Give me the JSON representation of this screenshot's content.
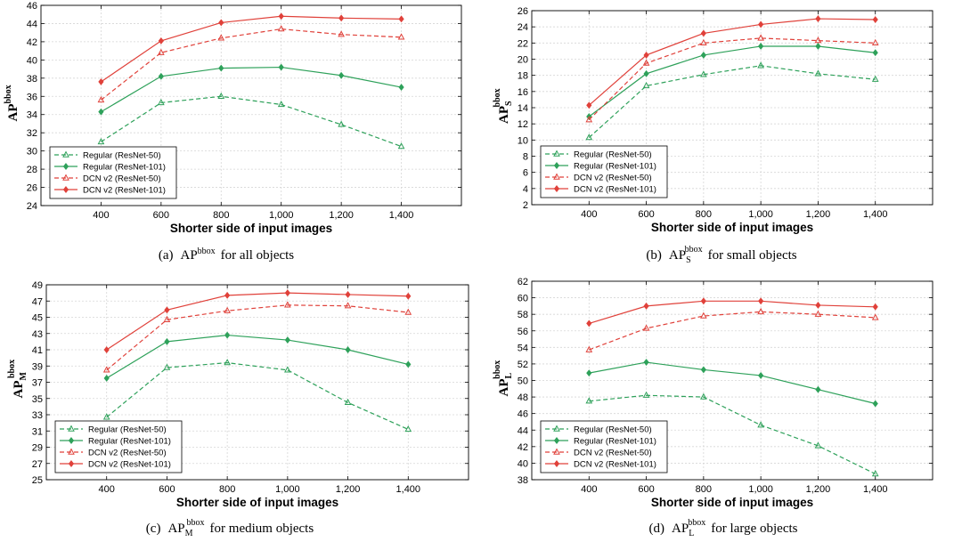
{
  "colors": {
    "regular": "#2ea15a",
    "dcn": "#e0413a"
  },
  "chart_data": [
    {
      "type": "line",
      "panel": "a",
      "caption": {
        "prefix": "(a)",
        "base": "AP",
        "sup": "bbox",
        "sub": "",
        "suffix": "for all objects"
      },
      "ylabel": {
        "base": "AP",
        "sup": "bbox",
        "sub": ""
      },
      "xlabel": "Shorter side of input images",
      "x": [
        400,
        600,
        800,
        1000,
        1200,
        1400
      ],
      "x_tick_labels": [
        "400",
        "600",
        "800",
        "1,000",
        "1,200",
        "1,400"
      ],
      "xlim": [
        200,
        1600
      ],
      "ylim": [
        24,
        46
      ],
      "y_ticks": [
        24,
        26,
        28,
        30,
        32,
        34,
        36,
        38,
        40,
        42,
        44,
        46
      ],
      "grid": true,
      "legend_position": "bottom-left",
      "series": [
        {
          "name": "Regular (ResNet-50)",
          "family": "regular",
          "dashed": true,
          "marker": "triangle",
          "values": [
            31.0,
            35.3,
            36.0,
            35.1,
            32.9,
            30.5
          ]
        },
        {
          "name": "Regular (ResNet-101)",
          "family": "regular",
          "dashed": false,
          "marker": "diamond",
          "values": [
            34.3,
            38.2,
            39.1,
            39.2,
            38.3,
            37.0
          ]
        },
        {
          "name": "DCN v2 (ResNet-50)",
          "family": "dcn",
          "dashed": true,
          "marker": "triangle",
          "values": [
            35.6,
            40.8,
            42.4,
            43.4,
            42.8,
            42.5
          ]
        },
        {
          "name": "DCN v2 (ResNet-101)",
          "family": "dcn",
          "dashed": false,
          "marker": "diamond",
          "values": [
            37.6,
            42.1,
            44.1,
            44.8,
            44.6,
            44.5
          ]
        }
      ]
    },
    {
      "type": "line",
      "panel": "b",
      "caption": {
        "prefix": "(b)",
        "base": "AP",
        "sup": "bbox",
        "sub": "S",
        "suffix": "for small objects"
      },
      "ylabel": {
        "base": "AP",
        "sup": "bbox",
        "sub": "S"
      },
      "xlabel": "Shorter side of input images",
      "x": [
        400,
        600,
        800,
        1000,
        1200,
        1400
      ],
      "x_tick_labels": [
        "400",
        "600",
        "800",
        "1,000",
        "1,200",
        "1,400"
      ],
      "xlim": [
        200,
        1600
      ],
      "ylim": [
        2,
        26
      ],
      "y_ticks": [
        2,
        4,
        6,
        8,
        10,
        12,
        14,
        16,
        18,
        20,
        22,
        24,
        26
      ],
      "grid": true,
      "legend_position": "bottom-left",
      "series": [
        {
          "name": "Regular (ResNet-50)",
          "family": "regular",
          "dashed": true,
          "marker": "triangle",
          "values": [
            10.3,
            16.7,
            18.1,
            19.2,
            18.2,
            17.5
          ]
        },
        {
          "name": "Regular (ResNet-101)",
          "family": "regular",
          "dashed": false,
          "marker": "diamond",
          "values": [
            12.9,
            18.2,
            20.5,
            21.6,
            21.6,
            20.8
          ]
        },
        {
          "name": "DCN v2 (ResNet-50)",
          "family": "dcn",
          "dashed": true,
          "marker": "triangle",
          "values": [
            12.5,
            19.5,
            22.0,
            22.6,
            22.3,
            22.0
          ]
        },
        {
          "name": "DCN v2 (ResNet-101)",
          "family": "dcn",
          "dashed": false,
          "marker": "diamond",
          "values": [
            14.3,
            20.5,
            23.2,
            24.3,
            25.0,
            24.9
          ]
        }
      ]
    },
    {
      "type": "line",
      "panel": "c",
      "caption": {
        "prefix": "(c)",
        "base": "AP",
        "sup": "bbox",
        "sub": "M",
        "suffix": "for medium objects"
      },
      "ylabel": {
        "base": "AP",
        "sup": "bbox",
        "sub": "M"
      },
      "xlabel": "Shorter side of input images",
      "x": [
        400,
        600,
        800,
        1000,
        1200,
        1400
      ],
      "x_tick_labels": [
        "400",
        "600",
        "800",
        "1,000",
        "1,200",
        "1,400"
      ],
      "xlim": [
        200,
        1600
      ],
      "ylim": [
        25,
        49
      ],
      "y_ticks": [
        25,
        27,
        29,
        31,
        33,
        35,
        37,
        39,
        41,
        43,
        45,
        47,
        49
      ],
      "grid": true,
      "legend_position": "bottom-left",
      "series": [
        {
          "name": "Regular (ResNet-50)",
          "family": "regular",
          "dashed": true,
          "marker": "triangle",
          "values": [
            32.7,
            38.8,
            39.4,
            38.5,
            34.5,
            31.2
          ]
        },
        {
          "name": "Regular (ResNet-101)",
          "family": "regular",
          "dashed": false,
          "marker": "diamond",
          "values": [
            37.5,
            42.0,
            42.8,
            42.2,
            41.0,
            39.2
          ]
        },
        {
          "name": "DCN v2 (ResNet-50)",
          "family": "dcn",
          "dashed": true,
          "marker": "triangle",
          "values": [
            38.5,
            44.7,
            45.8,
            46.5,
            46.4,
            45.6
          ]
        },
        {
          "name": "DCN v2 (ResNet-101)",
          "family": "dcn",
          "dashed": false,
          "marker": "diamond",
          "values": [
            41.0,
            45.9,
            47.7,
            48.0,
            47.8,
            47.6
          ]
        }
      ]
    },
    {
      "type": "line",
      "panel": "d",
      "caption": {
        "prefix": "(d)",
        "base": "AP",
        "sup": "bbox",
        "sub": "L",
        "suffix": "for large objects"
      },
      "ylabel": {
        "base": "AP",
        "sup": "bbox",
        "sub": "L"
      },
      "xlabel": "Shorter side of input images",
      "x": [
        400,
        600,
        800,
        1000,
        1200,
        1400
      ],
      "x_tick_labels": [
        "400",
        "600",
        "800",
        "1,000",
        "1,200",
        "1,400"
      ],
      "xlim": [
        200,
        1600
      ],
      "ylim": [
        38,
        62
      ],
      "y_ticks": [
        38,
        40,
        42,
        44,
        46,
        48,
        50,
        52,
        54,
        56,
        58,
        60,
        62
      ],
      "grid": true,
      "legend_position": "bottom-left",
      "series": [
        {
          "name": "Regular (ResNet-50)",
          "family": "regular",
          "dashed": true,
          "marker": "triangle",
          "values": [
            47.5,
            48.2,
            48.0,
            44.6,
            42.1,
            38.7
          ]
        },
        {
          "name": "Regular (ResNet-101)",
          "family": "regular",
          "dashed": false,
          "marker": "diamond",
          "values": [
            50.9,
            52.2,
            51.3,
            50.6,
            48.9,
            47.2
          ]
        },
        {
          "name": "DCN v2 (ResNet-50)",
          "family": "dcn",
          "dashed": true,
          "marker": "triangle",
          "values": [
            53.7,
            56.3,
            57.8,
            58.3,
            58.0,
            57.6
          ]
        },
        {
          "name": "DCN v2 (ResNet-101)",
          "family": "dcn",
          "dashed": false,
          "marker": "diamond",
          "values": [
            56.9,
            59.0,
            59.6,
            59.6,
            59.1,
            58.9
          ]
        }
      ]
    }
  ]
}
